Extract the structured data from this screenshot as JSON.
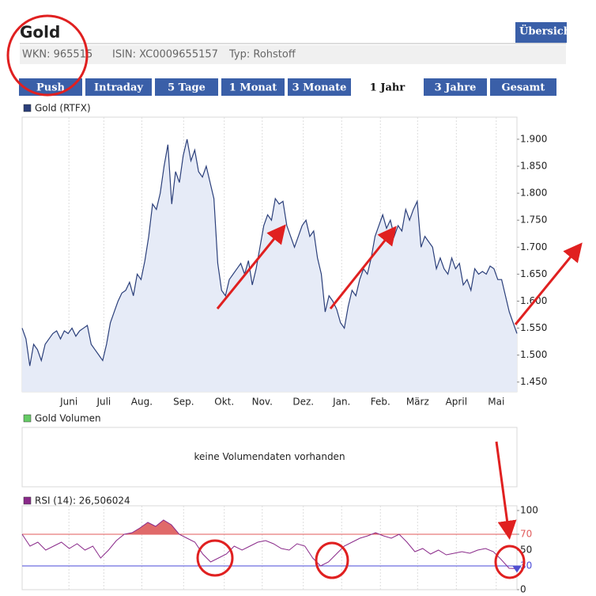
{
  "header": {
    "title": "Gold",
    "wkn": "WKN: 965515",
    "isin": "ISIN: XC0009655157",
    "typ": "Typ: Rohstoff",
    "button": "Übersicht"
  },
  "tabs": {
    "items": [
      "Push",
      "Intraday",
      "5 Tage",
      "1 Monat",
      "3 Monate",
      "1 Jahr",
      "3 Jahre",
      "Gesamt"
    ],
    "active": 5
  },
  "chart_data": [
    {
      "type": "area",
      "series": [
        {
          "name": "Gold (RTFX)",
          "color": "#2b3f7a",
          "fill": "#e6ebf7",
          "values": [
            1.55,
            1.53,
            1.48,
            1.52,
            1.51,
            1.49,
            1.52,
            1.53,
            1.54,
            1.545,
            1.53,
            1.545,
            1.54,
            1.55,
            1.535,
            1.545,
            1.55,
            1.555,
            1.52,
            1.51,
            1.5,
            1.49,
            1.52,
            1.56,
            1.58,
            1.6,
            1.615,
            1.62,
            1.635,
            1.61,
            1.65,
            1.64,
            1.675,
            1.72,
            1.78,
            1.77,
            1.8,
            1.85,
            1.89,
            1.78,
            1.84,
            1.82,
            1.87,
            1.9,
            1.86,
            1.88,
            1.84,
            1.83,
            1.85,
            1.82,
            1.79,
            1.67,
            1.62,
            1.61,
            1.64,
            1.65,
            1.66,
            1.67,
            1.65,
            1.675,
            1.63,
            1.66,
            1.7,
            1.74,
            1.76,
            1.75,
            1.79,
            1.78,
            1.785,
            1.74,
            1.72,
            1.7,
            1.72,
            1.74,
            1.75,
            1.72,
            1.73,
            1.68,
            1.65,
            1.58,
            1.61,
            1.6,
            1.585,
            1.56,
            1.55,
            1.59,
            1.62,
            1.61,
            1.64,
            1.66,
            1.65,
            1.68,
            1.72,
            1.74,
            1.76,
            1.735,
            1.75,
            1.72,
            1.74,
            1.73,
            1.77,
            1.75,
            1.77,
            1.785,
            1.7,
            1.72,
            1.71,
            1.7,
            1.66,
            1.68,
            1.66,
            1.65,
            1.68,
            1.66,
            1.67,
            1.63,
            1.64,
            1.62,
            1.66,
            1.65,
            1.655,
            1.65,
            1.665,
            1.66,
            1.64,
            1.64,
            1.61,
            1.58,
            1.56,
            1.54
          ]
        }
      ],
      "xlim": [
        0,
        129
      ],
      "xticks": [
        {
          "value": 12.2,
          "label": "Juni"
        },
        {
          "value": 21.3,
          "label": "Juli"
        },
        {
          "value": 31.2,
          "label": "Aug."
        },
        {
          "value": 42.1,
          "label": "Sep."
        },
        {
          "value": 52.7,
          "label": "Okt."
        },
        {
          "value": 62.6,
          "label": "Nov."
        },
        {
          "value": 73.3,
          "label": "Dez."
        },
        {
          "value": 83.3,
          "label": "Jan."
        },
        {
          "value": 93.4,
          "label": "Feb."
        },
        {
          "value": 103.1,
          "label": "März"
        },
        {
          "value": 113.2,
          "label": "April"
        },
        {
          "value": 123.6,
          "label": "Mai"
        }
      ],
      "ylim": [
        1.432,
        1.941
      ],
      "yticks": [
        {
          "value": 1.45,
          "label": "1.450"
        },
        {
          "value": 1.5,
          "label": "1.500"
        },
        {
          "value": 1.55,
          "label": "1.550"
        },
        {
          "value": 1.6,
          "label": "1.600"
        },
        {
          "value": 1.65,
          "label": "1.650"
        },
        {
          "value": 1.7,
          "label": "1.700"
        },
        {
          "value": 1.75,
          "label": "1.750"
        },
        {
          "value": 1.8,
          "label": "1.800"
        },
        {
          "value": 1.85,
          "label": "1.850"
        },
        {
          "value": 1.9,
          "label": "1.900"
        }
      ],
      "grid": "x"
    },
    {
      "type": "empty",
      "legend": "Gold Volumen",
      "legend_color": "#66cc66",
      "message": "keine Volumendaten vorhanden"
    },
    {
      "type": "line",
      "series": [
        {
          "name": "RSI (14): 26,506024",
          "color": "#8a2a8a",
          "values": [
            70,
            55,
            60,
            50,
            55,
            60,
            52,
            58,
            50,
            55,
            40,
            50,
            62,
            70,
            72,
            78,
            85,
            80,
            88,
            82,
            70,
            65,
            60,
            45,
            35,
            40,
            45,
            55,
            50,
            55,
            60,
            62,
            58,
            52,
            50,
            58,
            55,
            40,
            30,
            35,
            45,
            55,
            60,
            65,
            68,
            72,
            68,
            65,
            70,
            60,
            48,
            52,
            45,
            50,
            44,
            46,
            48,
            46,
            50,
            52,
            48,
            38,
            27,
            26.5
          ]
        }
      ],
      "xlim": [
        0,
        63
      ],
      "ylim": [
        0,
        100
      ],
      "yticks": [
        0,
        30,
        50,
        70,
        100
      ],
      "reference_lines": [
        {
          "value": 70,
          "color": "#e05a5a"
        },
        {
          "value": 30,
          "color": "#4a4ad8"
        }
      ],
      "overbought_fill": "#e06a6a",
      "last_marker": "#5050d0"
    }
  ]
}
